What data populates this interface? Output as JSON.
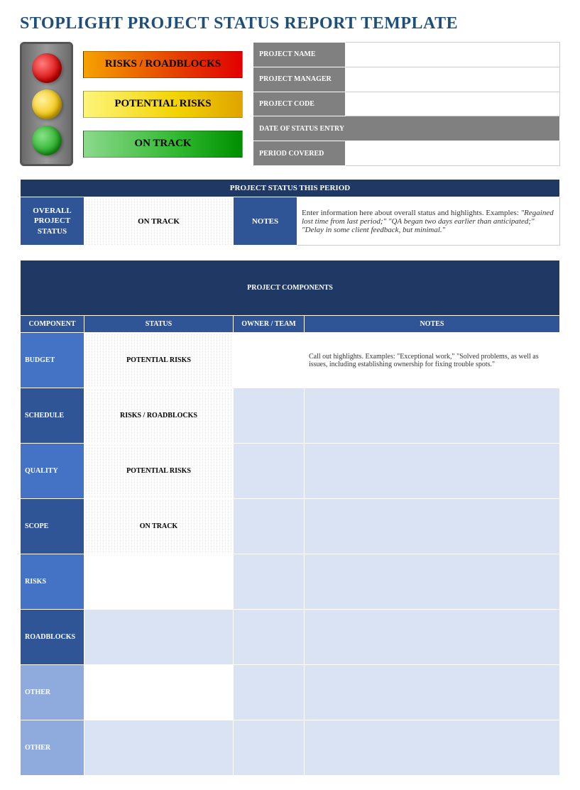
{
  "title": "STOPLIGHT PROJECT STATUS REPORT TEMPLATE",
  "colors": {
    "title": "#1f4e79",
    "header_dark": "#1f3864",
    "header_mid": "#2f5597",
    "row_dark": "#2f5597",
    "row_mid": "#4472c4",
    "row_light": "#8faadc",
    "cell_light": "#dae3f3",
    "gray": "#808080",
    "status_red_from": "#f6a200",
    "status_red_to": "#e20000",
    "status_yellow_from": "#fdf57a",
    "status_yellow_to": "#e0a400",
    "status_green_from": "#8cd98c",
    "status_green_to": "#008f00"
  },
  "legend": {
    "red": "RISKS / ROADBLOCKS",
    "yellow": "POTENTIAL RISKS",
    "green": "ON TRACK"
  },
  "info_fields": {
    "project_name": {
      "label": "PROJECT NAME",
      "value": ""
    },
    "project_manager": {
      "label": "PROJECT MANAGER",
      "value": ""
    },
    "project_code": {
      "label": "PROJECT CODE",
      "value": ""
    },
    "date_of_status_entry": {
      "label": "DATE OF STATUS ENTRY",
      "value": ""
    },
    "period_covered": {
      "label": "PERIOD COVERED",
      "value": ""
    }
  },
  "status_period": {
    "header": "PROJECT STATUS THIS PERIOD",
    "overall_label": "OVERALL PROJECT STATUS",
    "overall_status": "ON TRACK",
    "overall_status_type": "green",
    "notes_label": "NOTES",
    "notes_lead": "Enter information here about overall status and highlights. Examples: ",
    "notes_italic": "\"Regained lost time from last period;\" \"QA began two days earlier than anticipated;\" \"Delay in some client feedback, but minimal.\""
  },
  "components": {
    "header": "PROJECT COMPONENTS",
    "columns": {
      "component": "COMPONENT",
      "status": "STATUS",
      "owner": "OWNER / TEAM",
      "notes": "NOTES"
    },
    "rows": [
      {
        "label": "BUDGET",
        "label_bg": "row_mid",
        "status": "POTENTIAL RISKS",
        "status_type": "yellow",
        "owner": "",
        "notes": "Call out highlights. Examples: \"Exceptional work,\" \"Solved problems, as well as issues, including establishing ownership for fixing trouble spots.\"",
        "owner_bg": "white",
        "notes_bg": "white"
      },
      {
        "label": "SCHEDULE",
        "label_bg": "row_dark",
        "status": "RISKS / ROADBLOCKS",
        "status_type": "red",
        "owner": "",
        "notes": "",
        "owner_bg": "light",
        "notes_bg": "light"
      },
      {
        "label": "QUALITY",
        "label_bg": "row_mid",
        "status": "POTENTIAL RISKS",
        "status_type": "yellow",
        "owner": "",
        "notes": "",
        "owner_bg": "light",
        "notes_bg": "light"
      },
      {
        "label": "SCOPE",
        "label_bg": "row_dark",
        "status": "ON TRACK",
        "status_type": "green",
        "owner": "",
        "notes": "",
        "owner_bg": "light",
        "notes_bg": "light"
      },
      {
        "label": "RISKS",
        "label_bg": "row_mid",
        "status": "",
        "status_type": "white",
        "owner": "",
        "notes": "",
        "owner_bg": "light",
        "notes_bg": "light"
      },
      {
        "label": "ROADBLOCKS",
        "label_bg": "row_dark",
        "status": "",
        "status_type": "light",
        "owner": "",
        "notes": "",
        "owner_bg": "light",
        "notes_bg": "light"
      },
      {
        "label": "OTHER",
        "label_bg": "row_light",
        "status": "",
        "status_type": "white",
        "owner": "",
        "notes": "",
        "owner_bg": "light",
        "notes_bg": "light"
      },
      {
        "label": "OTHER",
        "label_bg": "row_light",
        "status": "",
        "status_type": "light",
        "owner": "",
        "notes": "",
        "owner_bg": "light",
        "notes_bg": "light"
      }
    ]
  }
}
